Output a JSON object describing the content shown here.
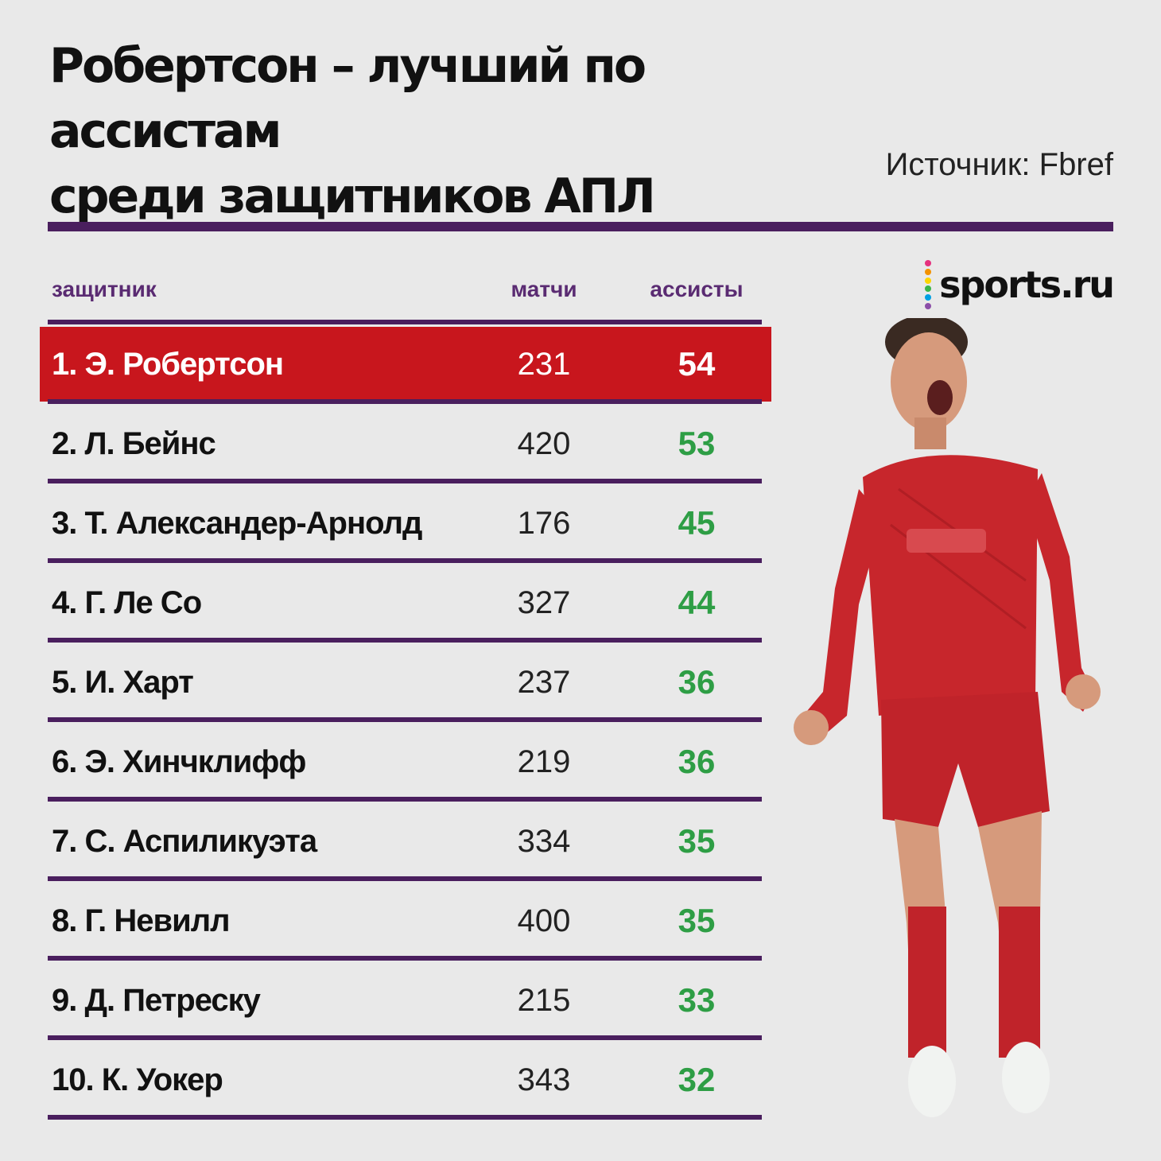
{
  "title_line1": "Робертсон – лучший по ассистам",
  "title_line2": "среди защитников АПЛ",
  "source": "Источник: Fbref",
  "logo": {
    "text": "sports.ru",
    "dot_colors": [
      "#e5317e",
      "#f39200",
      "#fdd500",
      "#3ab54a",
      "#00a0e3",
      "#8b4ea8"
    ]
  },
  "table": {
    "headers": {
      "player": "защитник",
      "matches": "матчи",
      "assists": "ассисты"
    },
    "rows": [
      {
        "name": "1. Э. Робертсон",
        "matches": "231",
        "assists": "54"
      },
      {
        "name": "2. Л. Бейнс",
        "matches": "420",
        "assists": "53"
      },
      {
        "name": "3. Т. Александер-Арнолд",
        "matches": "176",
        "assists": "45"
      },
      {
        "name": "4. Г. Ле Со",
        "matches": "327",
        "assists": "44"
      },
      {
        "name": "5. И. Харт",
        "matches": "237",
        "assists": "36"
      },
      {
        "name": "6. Э. Хинчклифф",
        "matches": "219",
        "assists": "36"
      },
      {
        "name": "7. С. Аспиликуэта",
        "matches": "334",
        "assists": "35"
      },
      {
        "name": "8. Г. Невилл",
        "matches": "400",
        "assists": "35"
      },
      {
        "name": "9. Д. Петреску",
        "matches": "215",
        "assists": "33"
      },
      {
        "name": "10. К. Уокер",
        "matches": "343",
        "assists": "32"
      }
    ]
  },
  "colors": {
    "accent_purple": "#4a1f5e",
    "highlight_red": "#c8161d",
    "assist_green": "#2e9e45",
    "background": "#e9e9e9"
  }
}
